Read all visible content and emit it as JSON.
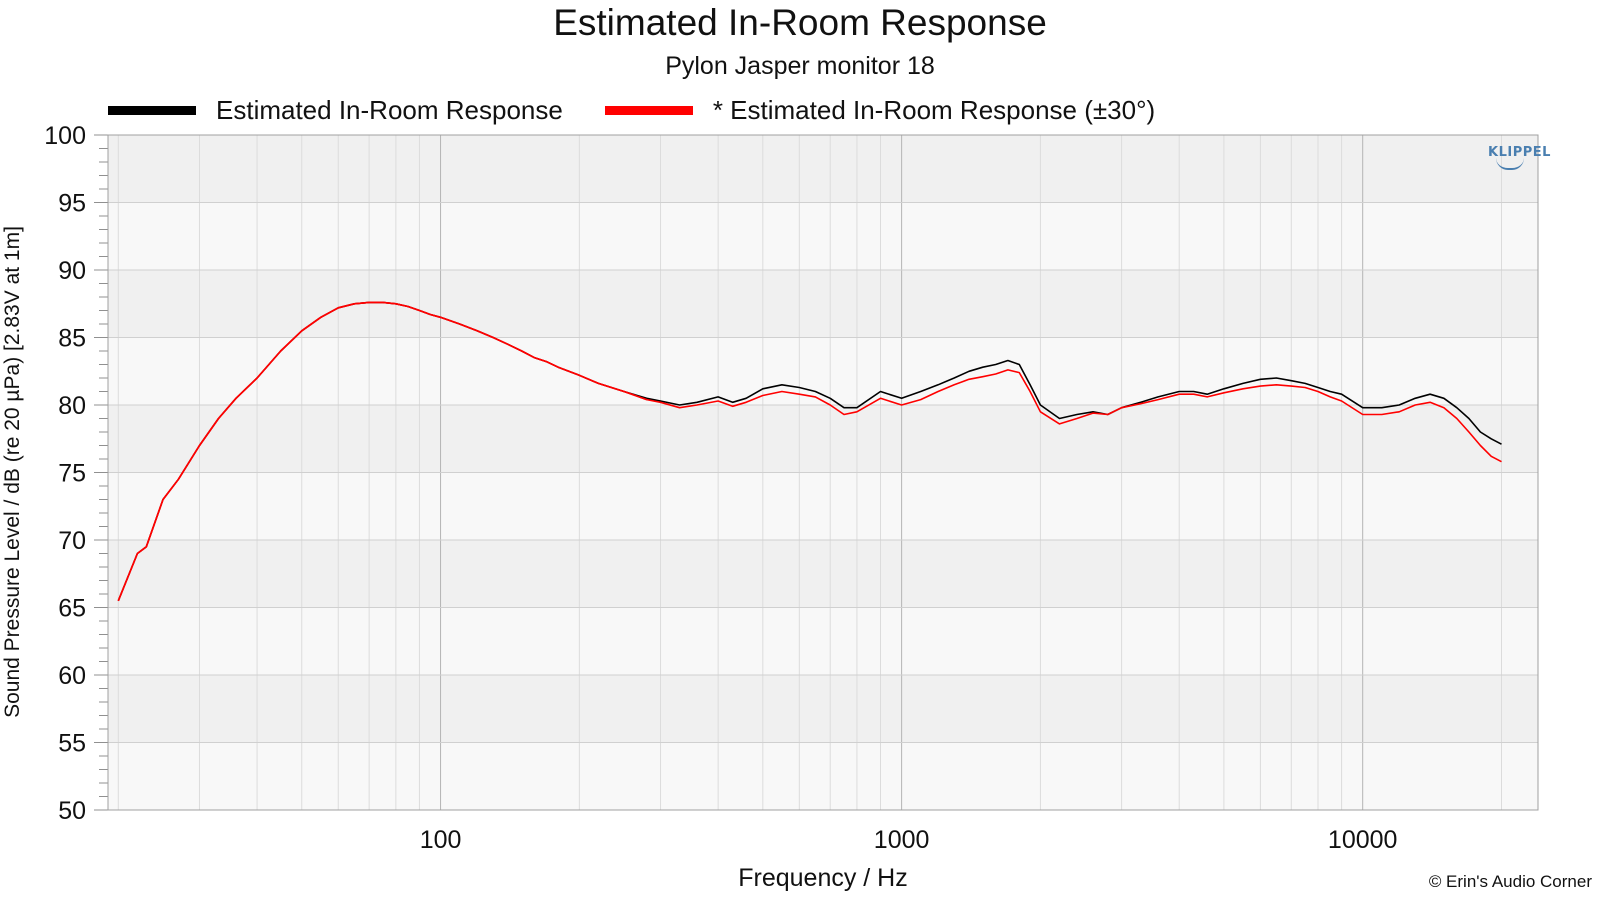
{
  "chart_data": {
    "type": "line",
    "title": "Estimated In-Room Response",
    "subtitle": "Pylon Jasper monitor 18",
    "xlabel": "Frequency / Hz",
    "ylabel": "Sound Pressure Level / dB (re 20 µPa)  [2.83V at 1m]",
    "xscale": "log",
    "xlim": [
      19,
      24000
    ],
    "ylim": [
      50,
      100
    ],
    "yticks": [
      "50",
      "55",
      "60",
      "65",
      "70",
      "75",
      "80",
      "85",
      "90",
      "95",
      "100"
    ],
    "xticks": [
      {
        "value": 100,
        "label": "100"
      },
      {
        "value": 1000,
        "label": "1000"
      },
      {
        "value": 10000,
        "label": "10000"
      }
    ],
    "grid": true,
    "legend_position": "top",
    "series": [
      {
        "name": "Estimated In-Room Response",
        "color": "#000000",
        "x": [
          20,
          22,
          23,
          25,
          27,
          30,
          33,
          36,
          40,
          45,
          50,
          55,
          60,
          65,
          70,
          75,
          80,
          85,
          90,
          95,
          100,
          110,
          120,
          130,
          140,
          150,
          160,
          170,
          180,
          200,
          220,
          250,
          280,
          300,
          330,
          360,
          400,
          430,
          460,
          500,
          550,
          600,
          650,
          700,
          750,
          800,
          900,
          1000,
          1100,
          1200,
          1300,
          1400,
          1500,
          1600,
          1700,
          1800,
          1900,
          2000,
          2200,
          2400,
          2600,
          2800,
          3000,
          3300,
          3600,
          4000,
          4300,
          4600,
          5000,
          5500,
          6000,
          6500,
          7000,
          7500,
          8000,
          8500,
          9000,
          10000,
          11000,
          12000,
          13000,
          14000,
          15000,
          16000,
          17000,
          18000,
          19000,
          20000
        ],
        "y": [
          65.5,
          69.0,
          69.5,
          73.0,
          74.5,
          77.0,
          79.0,
          80.5,
          82.0,
          84.0,
          85.5,
          86.5,
          87.2,
          87.5,
          87.6,
          87.6,
          87.5,
          87.3,
          87.0,
          86.7,
          86.5,
          86.0,
          85.5,
          85.0,
          84.5,
          84.0,
          83.5,
          83.2,
          82.8,
          82.2,
          81.6,
          81.0,
          80.5,
          80.3,
          80.0,
          80.2,
          80.6,
          80.2,
          80.5,
          81.2,
          81.5,
          81.3,
          81.0,
          80.5,
          79.8,
          79.8,
          81.0,
          80.5,
          81.0,
          81.5,
          82.0,
          82.5,
          82.8,
          83.0,
          83.3,
          83.0,
          81.5,
          80.0,
          79.0,
          79.3,
          79.5,
          79.3,
          79.8,
          80.2,
          80.6,
          81.0,
          81.0,
          80.8,
          81.2,
          81.6,
          81.9,
          82.0,
          81.8,
          81.6,
          81.3,
          81.0,
          80.8,
          79.8,
          79.8,
          80.0,
          80.5,
          80.8,
          80.5,
          79.8,
          79.0,
          78.0,
          77.5,
          77.1
        ]
      },
      {
        "name": "* Estimated In-Room Response (±30°)",
        "color": "#ff0000",
        "x": [
          20,
          22,
          23,
          25,
          27,
          30,
          33,
          36,
          40,
          45,
          50,
          55,
          60,
          65,
          70,
          75,
          80,
          85,
          90,
          95,
          100,
          110,
          120,
          130,
          140,
          150,
          160,
          170,
          180,
          200,
          220,
          250,
          280,
          300,
          330,
          360,
          400,
          430,
          460,
          500,
          550,
          600,
          650,
          700,
          750,
          800,
          900,
          1000,
          1100,
          1200,
          1300,
          1400,
          1500,
          1600,
          1700,
          1800,
          1900,
          2000,
          2200,
          2400,
          2600,
          2800,
          3000,
          3300,
          3600,
          4000,
          4300,
          4600,
          5000,
          5500,
          6000,
          6500,
          7000,
          7500,
          8000,
          8500,
          9000,
          10000,
          11000,
          12000,
          13000,
          14000,
          15000,
          16000,
          17000,
          18000,
          19000,
          20000
        ],
        "y": [
          65.5,
          69.0,
          69.5,
          73.0,
          74.5,
          77.0,
          79.0,
          80.5,
          82.0,
          84.0,
          85.5,
          86.5,
          87.2,
          87.5,
          87.6,
          87.6,
          87.5,
          87.3,
          87.0,
          86.7,
          86.5,
          86.0,
          85.5,
          85.0,
          84.5,
          84.0,
          83.5,
          83.2,
          82.8,
          82.2,
          81.6,
          81.0,
          80.4,
          80.2,
          79.8,
          80.0,
          80.3,
          79.9,
          80.2,
          80.7,
          81.0,
          80.8,
          80.6,
          80.0,
          79.3,
          79.5,
          80.5,
          80.0,
          80.4,
          81.0,
          81.5,
          81.9,
          82.1,
          82.3,
          82.6,
          82.4,
          81.0,
          79.5,
          78.6,
          79.0,
          79.4,
          79.3,
          79.8,
          80.1,
          80.4,
          80.8,
          80.8,
          80.6,
          80.9,
          81.2,
          81.4,
          81.5,
          81.4,
          81.3,
          81.0,
          80.6,
          80.3,
          79.3,
          79.3,
          79.5,
          80.0,
          80.2,
          79.8,
          79.0,
          78.0,
          77.0,
          76.2,
          75.8
        ]
      }
    ],
    "copyright": "© Erin's Audio Corner",
    "logo": "KLIPPEL"
  }
}
